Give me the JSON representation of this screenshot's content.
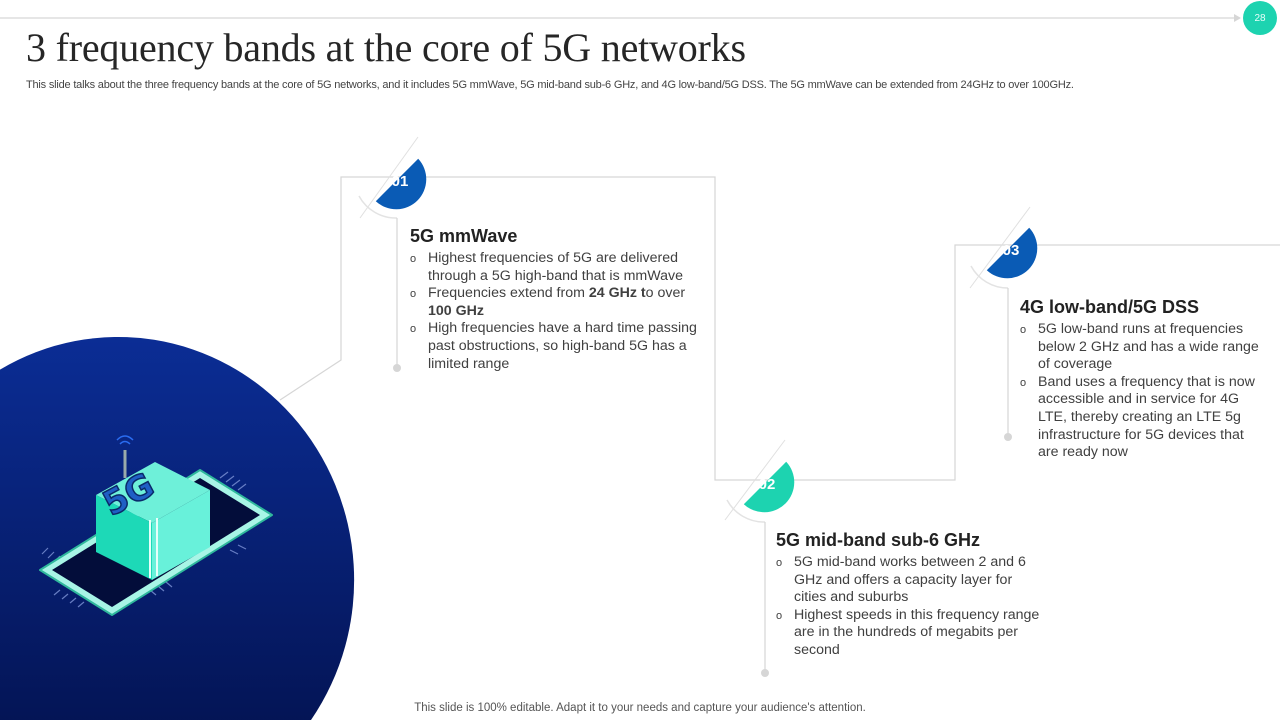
{
  "slide": {
    "title": "3 frequency bands at the core of 5G networks",
    "subtitle": "This slide talks about the three frequency bands at the core of 5G networks, and it includes 5G mmWave, 5G mid-band sub-6 GHz, and 4G low-band/5G DSS. The 5G mmWave can be extended from 24GHz to over 100GHz.",
    "page_number": "28",
    "footer": "This slide is 100% editable. Adapt it to your needs and capture your audience's attention."
  },
  "colors": {
    "blue": "#0a5bb5",
    "teal": "#1dd3b0",
    "navy": "#0a2a8a",
    "line": "#d6d6d6"
  },
  "illustration": {
    "label": "5G"
  },
  "bands": [
    {
      "number": "01",
      "title": "5G mmWave",
      "bullets": [
        {
          "text": "Highest frequencies of 5G are delivered through a 5G high-band that is mmWave"
        },
        {
          "pre": "Frequencies extend from ",
          "bold1": "24 GHz t",
          "mid": "o over ",
          "bold2": "100 GHz"
        },
        {
          "text": "High frequencies have a hard time passing past obstructions, so high-band 5G has a limited range"
        }
      ]
    },
    {
      "number": "02",
      "title": "5G mid-band sub-6 GHz",
      "bullets": [
        {
          "text": "5G mid-band works between 2 and 6 GHz and offers a capacity layer for cities and suburbs"
        },
        {
          "text": "Highest speeds in this frequency range are in the hundreds of megabits per second"
        }
      ]
    },
    {
      "number": "03",
      "title": "4G low-band/5G DSS",
      "bullets": [
        {
          "text": "5G low-band runs at frequencies below 2 GHz and has a wide range of coverage"
        },
        {
          "text": "Band uses a frequency that is now accessible and in service for 4G LTE, thereby creating an LTE 5g infrastructure for 5G devices that are ready now"
        }
      ]
    }
  ]
}
